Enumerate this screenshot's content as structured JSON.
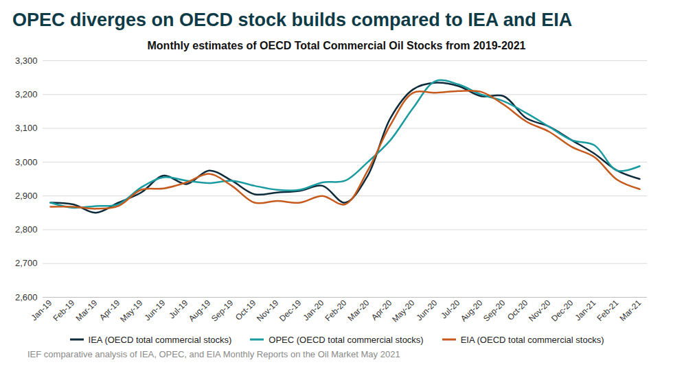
{
  "chart_data": {
    "type": "line",
    "title": "OPEC diverges on OECD stock builds compared to IEA and EIA",
    "subtitle": "Monthly estimates of OECD Total Commercial Oil Stocks from 2019-2021",
    "caption": "IEF comparative analysis of IEA, OPEC, and EIA Monthly Reports on the Oil Market May 2021",
    "categories": [
      "Jan-19",
      "Feb-19",
      "Mar-19",
      "Apr-19",
      "May-19",
      "Jun-19",
      "Jul-19",
      "Aug-19",
      "Sep-19",
      "Oct-19",
      "Nov-19",
      "Dec-19",
      "Jan-20",
      "Feb-20",
      "Mar-20",
      "Apr-20",
      "May-20",
      "Jun-20",
      "Jul-20",
      "Aug-20",
      "Sep-20",
      "Oct-20",
      "Nov-20",
      "Dec-20",
      "Jan-21",
      "Feb-21",
      "Mar-21"
    ],
    "series": [
      {
        "name": "IEA (OECD total commercial stocks)",
        "color": "#0d2b3a",
        "values": [
          2880,
          2875,
          2850,
          2880,
          2910,
          2960,
          2935,
          2975,
          2945,
          2905,
          2910,
          2915,
          2930,
          2880,
          2960,
          3130,
          3215,
          3235,
          3225,
          3195,
          3195,
          3130,
          3105,
          3065,
          3025,
          2975,
          2950
        ]
      },
      {
        "name": "OPEC (OECD total commercial stocks)",
        "color": "#1a9ba0",
        "values": [
          2880,
          2865,
          2870,
          2875,
          2925,
          2955,
          2945,
          2938,
          2945,
          2930,
          2918,
          2918,
          2940,
          2945,
          3000,
          3065,
          3160,
          3240,
          3230,
          3200,
          3180,
          3145,
          3105,
          3065,
          3050,
          2975,
          2988
        ]
      },
      {
        "name": "EIA (OECD total commercial stocks)",
        "color": "#c55a1c",
        "values": [
          2868,
          2868,
          2862,
          2870,
          2918,
          2922,
          2940,
          2965,
          2930,
          2880,
          2885,
          2880,
          2900,
          2875,
          2975,
          3110,
          3205,
          3205,
          3210,
          3208,
          3170,
          3120,
          3090,
          3045,
          3015,
          2948,
          2920
        ]
      }
    ],
    "ylim": [
      2600,
      3300
    ],
    "yticks": [
      2600,
      2700,
      2800,
      2900,
      3000,
      3100,
      3200,
      3300
    ],
    "grid": true,
    "legend": "bottom"
  }
}
